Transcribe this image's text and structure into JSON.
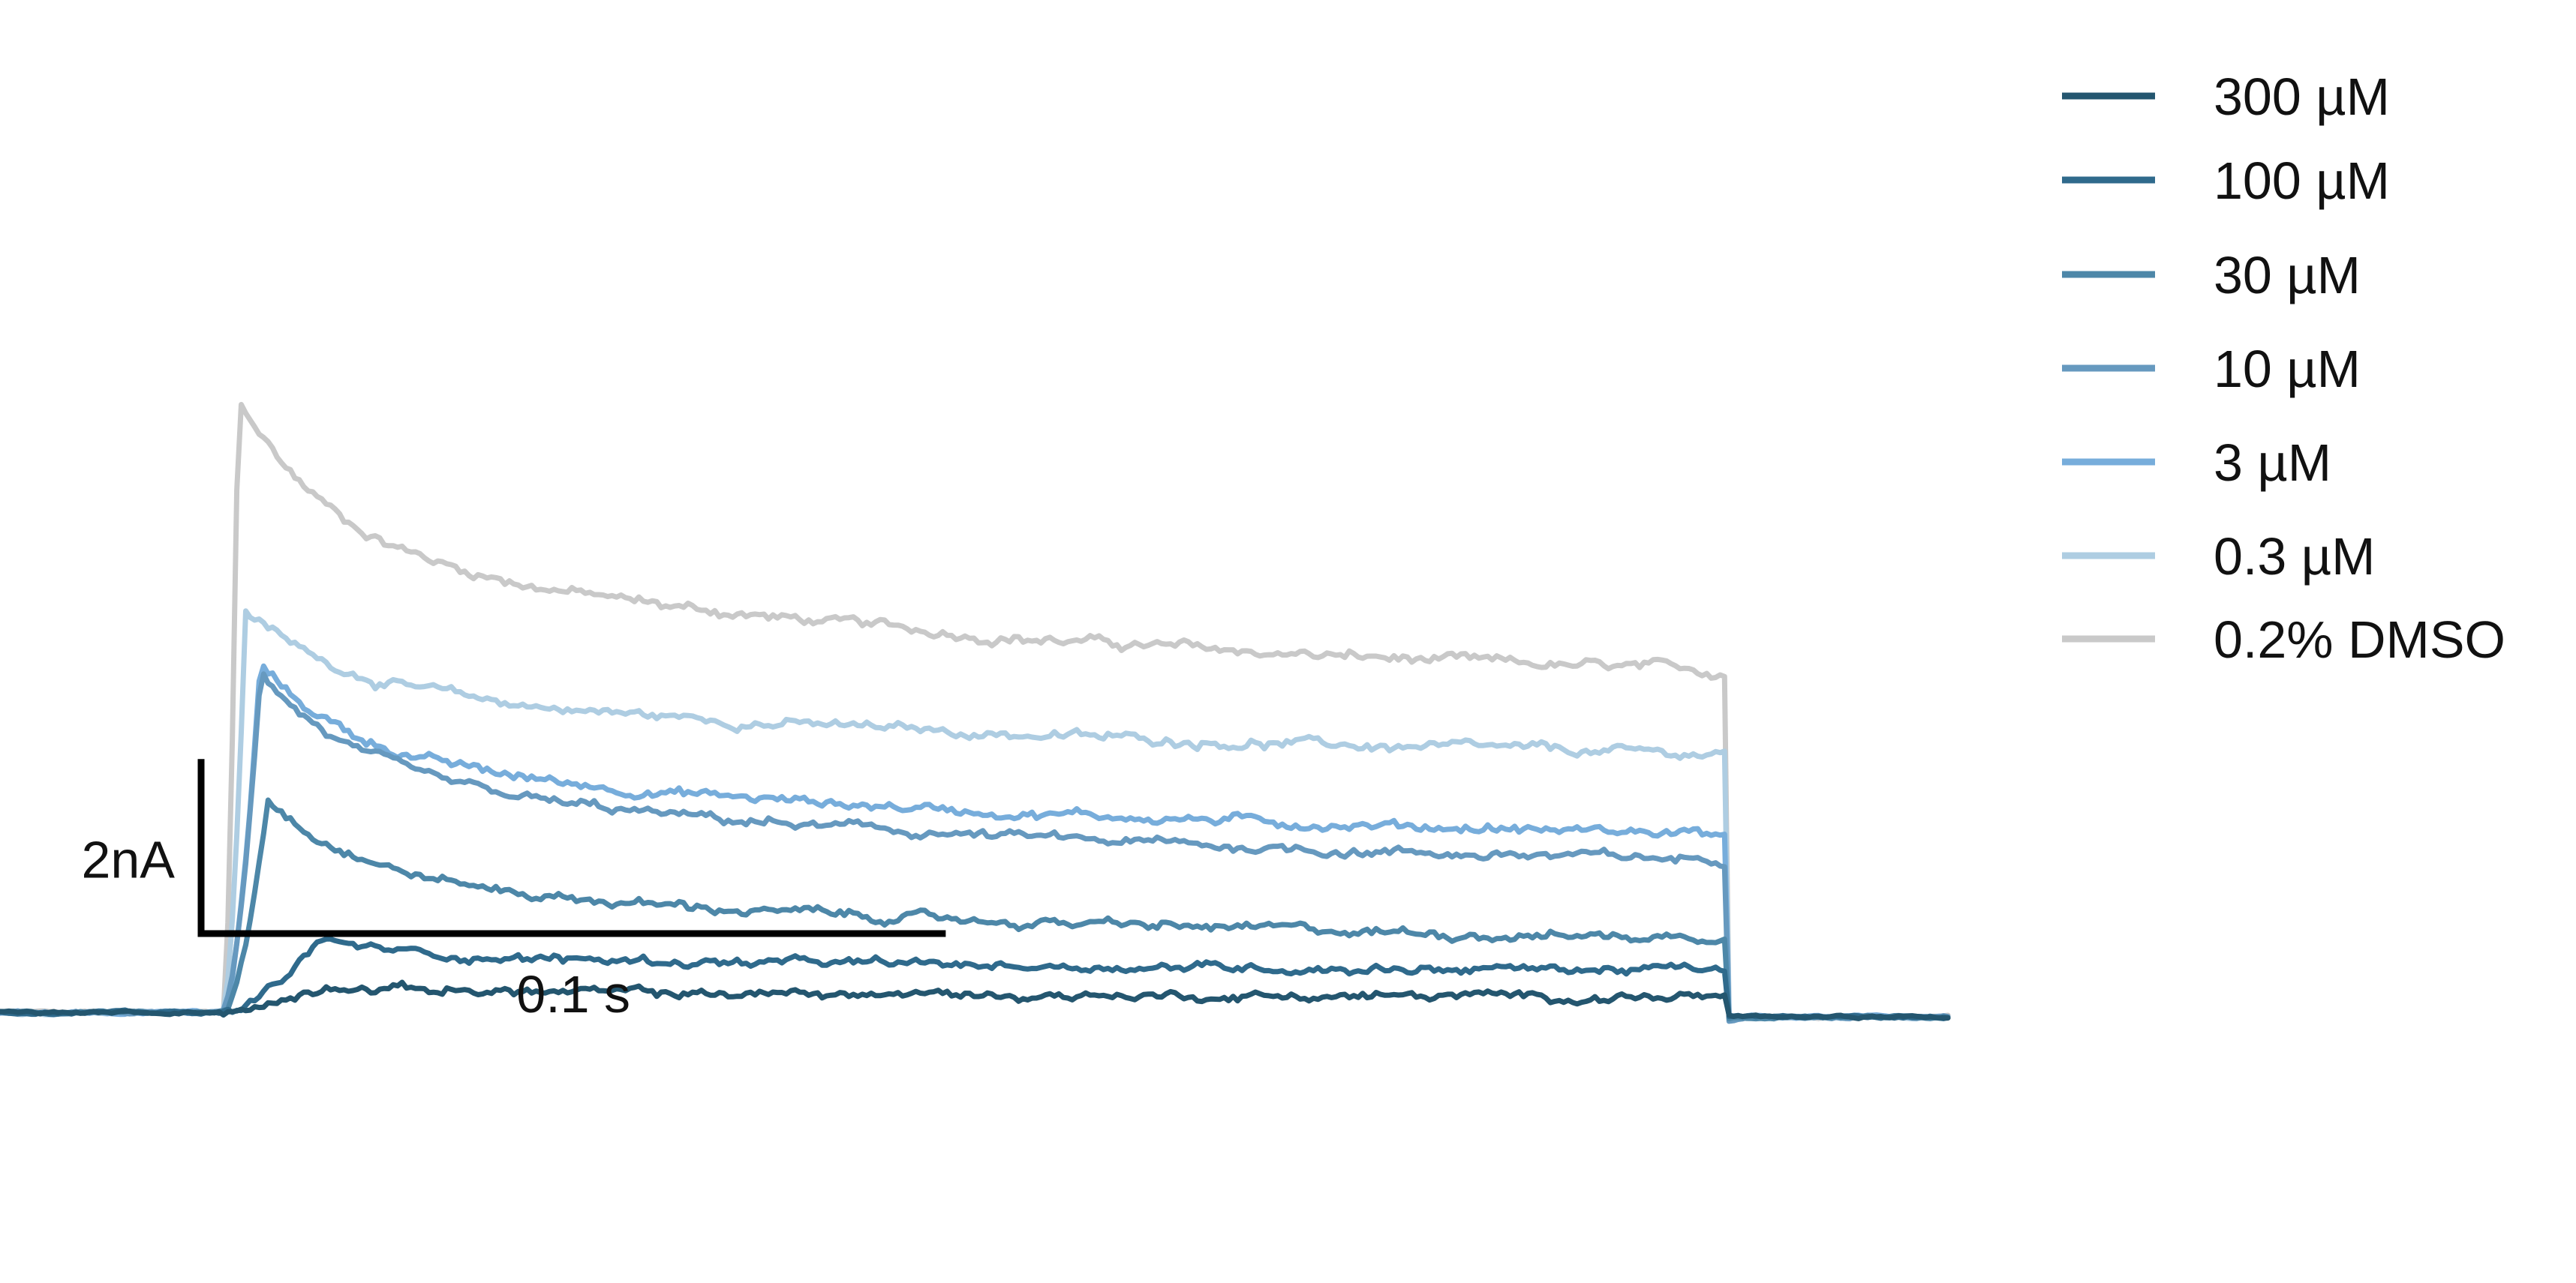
{
  "chart_data": {
    "type": "line",
    "title": "",
    "xlabel": "",
    "ylabel": "",
    "x_units": "s",
    "y_units": "nA",
    "xlim": [
      -0.052,
      0.21
    ],
    "ylim": [
      -3.1,
      11.6
    ],
    "pulse": {
      "start": -0.022,
      "end": 0.18
    },
    "scale_bars": {
      "x": {
        "value": 0.1,
        "label": "0.1 s"
      },
      "y": {
        "value": 2,
        "label": "2nA"
      }
    },
    "legend_position": "top-right",
    "series": [
      {
        "name": "300 µM",
        "color": "#24566f",
        "peak": 0.33,
        "peak_time": -0.008,
        "steady": 0.18
      },
      {
        "name": "100 µM",
        "color": "#2f6a8c",
        "peak": 0.83,
        "peak_time": -0.009,
        "steady": 0.5
      },
      {
        "name": "30 µM",
        "color": "#4d87a8",
        "peak": 2.47,
        "peak_time": -0.016,
        "steady": 0.82
      },
      {
        "name": "10 µM",
        "color": "#6699bf",
        "peak": 3.94,
        "peak_time": -0.017,
        "steady": 1.74
      },
      {
        "name": "3 µM",
        "color": "#77addb",
        "peak": 3.99,
        "peak_time": -0.017,
        "steady": 2.08
      },
      {
        "name": "0.3 µM",
        "color": "#aecde2",
        "peak": 4.62,
        "peak_time": -0.019,
        "steady": 3.06
      },
      {
        "name": "0.2% DMSO",
        "color": "#c9c9c9",
        "peak": 7.06,
        "peak_time": -0.02,
        "steady": 3.99
      }
    ]
  }
}
